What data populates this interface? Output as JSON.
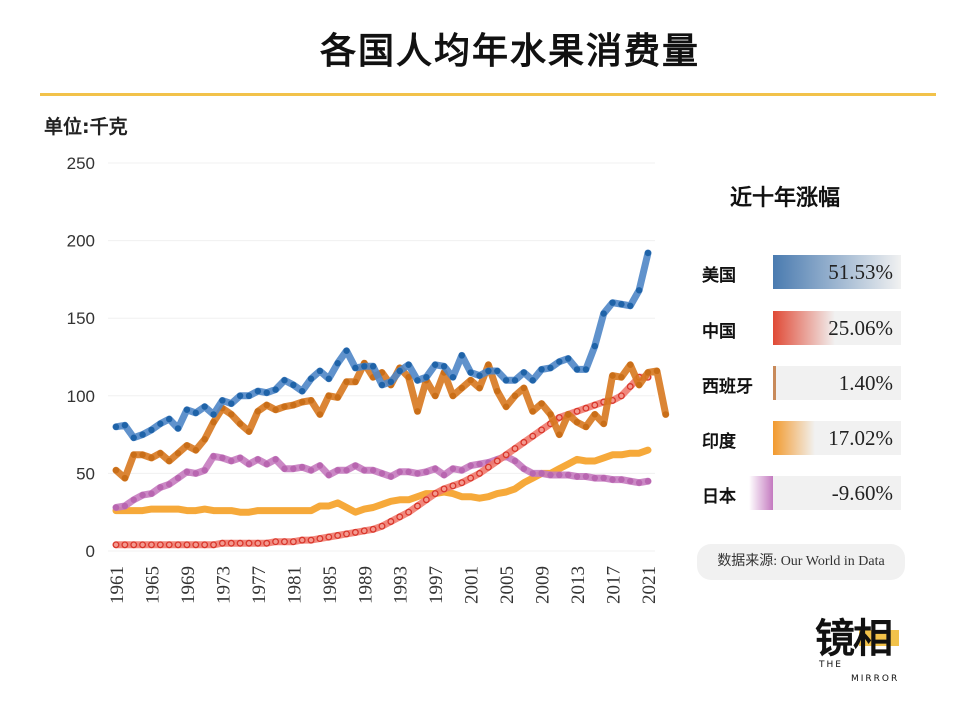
{
  "title": "各国人均年水果消费量",
  "unit_label": "单位:千克",
  "panel": {
    "title": "近十年涨幅",
    "rows": [
      {
        "country": "美国",
        "value": "51.53%",
        "pct": 51.53,
        "color": "#4a7bb0"
      },
      {
        "country": "中国",
        "value": "25.06%",
        "pct": 25.06,
        "color": "#e04a36"
      },
      {
        "country": "西班牙",
        "value": "1.40%",
        "pct": 1.4,
        "color": "#c88a5a"
      },
      {
        "country": "印度",
        "value": "17.02%",
        "pct": 17.02,
        "color": "#f29a2e"
      },
      {
        "country": "日本",
        "value": "-9.60%",
        "pct": -9.6,
        "color": "#c47ac0"
      }
    ]
  },
  "source": "数据来源: Our World in Data",
  "logo": {
    "cn": "镜相",
    "en1": "THE",
    "en2": "MIRROR"
  },
  "chart_data": {
    "type": "line",
    "title": "各国人均年水果消费量",
    "ylabel": "单位:千克",
    "ylim": [
      0,
      250
    ],
    "yticks": [
      0,
      50,
      100,
      150,
      200,
      250
    ],
    "xlim": [
      1961,
      2021
    ],
    "xticks": [
      1961,
      1965,
      1969,
      1973,
      1977,
      1981,
      1985,
      1989,
      1993,
      1997,
      2001,
      2005,
      2009,
      2013,
      2017,
      2021
    ],
    "grid": true,
    "legend": "none",
    "series": [
      {
        "key": "usa",
        "color": "#4f86c6",
        "dot": "#1f63a8",
        "marker": "filled",
        "values": [
          80,
          81,
          73,
          75,
          78,
          82,
          85,
          79,
          91,
          89,
          93,
          88,
          97,
          95,
          100,
          100,
          103,
          102,
          104,
          110,
          107,
          103,
          111,
          116,
          111,
          121,
          129,
          118,
          119,
          119,
          107,
          109,
          116,
          120,
          110,
          112,
          120,
          119,
          112,
          126,
          115,
          113,
          116,
          116,
          110,
          110,
          115,
          110,
          117,
          118,
          122,
          124,
          117,
          117,
          132,
          153,
          160,
          159,
          158,
          168,
          192
        ]
      },
      {
        "key": "spain",
        "color": "#d7781f",
        "dot": "#c96e18",
        "marker": "filled",
        "values": [
          52,
          47,
          62,
          62,
          60,
          63,
          58,
          63,
          68,
          65,
          72,
          83,
          92,
          88,
          82,
          77,
          90,
          94,
          91,
          93,
          94,
          96,
          97,
          88,
          100,
          99,
          109,
          109,
          121,
          112,
          115,
          107,
          118,
          112,
          90,
          110,
          100,
          115,
          100,
          105,
          110,
          105,
          120,
          103,
          93,
          100,
          105,
          90,
          95,
          88,
          75,
          88,
          83,
          80,
          88,
          82,
          113,
          112,
          120,
          107,
          115,
          116,
          88
        ]
      },
      {
        "key": "japan",
        "color": "#c57bbf",
        "dot": "#b866b0",
        "marker": "filled",
        "values": [
          28,
          29,
          33,
          36,
          37,
          41,
          43,
          47,
          51,
          50,
          52,
          61,
          60,
          58,
          60,
          56,
          59,
          56,
          59,
          53,
          53,
          54,
          52,
          55,
          49,
          52,
          52,
          55,
          52,
          52,
          50,
          48,
          51,
          51,
          50,
          51,
          53,
          49,
          53,
          52,
          55,
          56,
          57,
          59,
          61,
          58,
          53,
          50,
          50,
          49,
          49,
          49,
          48,
          48,
          47,
          47,
          46,
          46,
          45,
          44,
          45
        ]
      },
      {
        "key": "india",
        "color": "#f5a025",
        "dot": "#f29a1c",
        "marker": "none",
        "values": [
          26,
          26,
          26,
          26,
          27,
          27,
          27,
          27,
          26,
          26,
          27,
          26,
          26,
          26,
          25,
          25,
          26,
          26,
          26,
          26,
          26,
          26,
          26,
          29,
          29,
          31,
          28,
          25,
          27,
          28,
          30,
          32,
          33,
          33,
          35,
          37,
          37,
          38,
          37,
          35,
          35,
          34,
          35,
          37,
          38,
          40,
          44,
          47,
          50,
          50,
          53,
          56,
          59,
          58,
          58,
          60,
          62,
          62,
          63,
          63,
          65
        ]
      },
      {
        "key": "china",
        "color": "#f07a6e",
        "dot": "#d9362b",
        "marker": "hollow",
        "values": [
          4,
          4,
          4,
          4,
          4,
          4,
          4,
          4,
          4,
          4,
          4,
          4,
          5,
          5,
          5,
          5,
          5,
          5,
          6,
          6,
          6,
          7,
          7,
          8,
          9,
          10,
          11,
          12,
          13,
          14,
          16,
          19,
          22,
          25,
          29,
          33,
          37,
          40,
          42,
          44,
          47,
          50,
          54,
          58,
          62,
          66,
          70,
          74,
          78,
          82,
          86,
          88,
          90,
          92,
          94,
          96,
          97,
          100,
          106,
          112,
          112
        ]
      }
    ]
  }
}
